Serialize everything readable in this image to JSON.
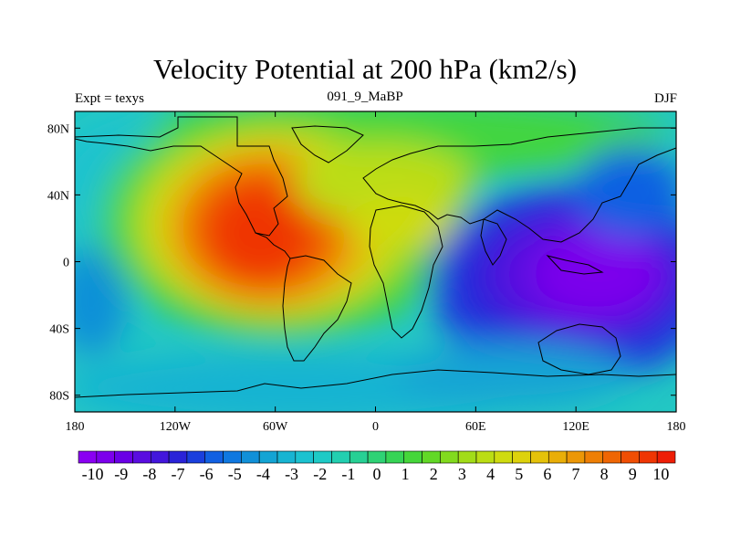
{
  "title": "Velocity Potential at 200 hPa (km2/s)",
  "left_string": "Expt = texys",
  "center_string": "091_9_MaBP",
  "right_string": "DJF",
  "map": {
    "projection": "cylindrical-equidistant",
    "lon_range": [
      -180,
      180
    ],
    "lat_range": [
      -90,
      90
    ],
    "x_ticks": [
      {
        "lon": -180,
        "label": "180"
      },
      {
        "lon": -120,
        "label": "120W"
      },
      {
        "lon": -60,
        "label": "60W"
      },
      {
        "lon": 0,
        "label": "0"
      },
      {
        "lon": 60,
        "label": "60E"
      },
      {
        "lon": 120,
        "label": "120E"
      },
      {
        "lon": 180,
        "label": "180"
      }
    ],
    "y_ticks": [
      {
        "lat": 80,
        "label": "80N"
      },
      {
        "lat": 40,
        "label": "40N"
      },
      {
        "lat": 0,
        "label": "0"
      },
      {
        "lat": -40,
        "label": "40S"
      },
      {
        "lat": -80,
        "label": "80S"
      }
    ],
    "field_centers": [
      {
        "name": "upper-divergence-maximum",
        "lon": -65,
        "lat": 15,
        "value": 10
      },
      {
        "name": "upper-convergence-minimum",
        "lon": 130,
        "lat": -5,
        "value": -10
      }
    ]
  },
  "colorbar": {
    "min": -10,
    "max": 10,
    "labels": [
      "-10",
      "-9",
      "-8",
      "-7",
      "-6",
      "-5",
      "-4",
      "-3",
      "-2",
      "-1",
      "0",
      "1",
      "2",
      "3",
      "4",
      "5",
      "6",
      "7",
      "8",
      "9",
      "10"
    ],
    "colors": [
      "#8a00f2",
      "#7c00ec",
      "#6a00e6",
      "#5a0de0",
      "#4316dc",
      "#2a23d8",
      "#1a3fdd",
      "#1160e2",
      "#0f78e0",
      "#1190d8",
      "#13a4d4",
      "#17b4d2",
      "#1bc2d0",
      "#1ecac6",
      "#22cfb0",
      "#27d094",
      "#2ed275",
      "#36d455",
      "#45d63a",
      "#62d826",
      "#82da1e",
      "#a2dc18",
      "#bbdd14",
      "#cfdb10",
      "#ddd20c",
      "#e5c20a",
      "#e9ae08",
      "#ec9706",
      "#ee7f05",
      "#ef6604",
      "#f04e04",
      "#ef3604",
      "#ee1e06"
    ]
  }
}
